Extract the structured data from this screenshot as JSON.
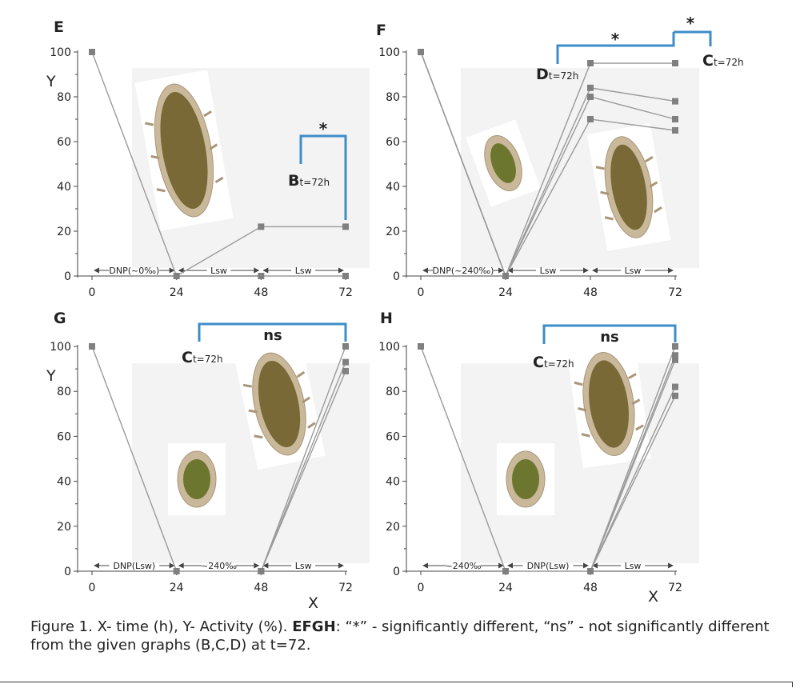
{
  "chart_data": [
    {
      "type": "line",
      "panel_label": "E",
      "ylabel": "Y",
      "xlabel": "",
      "x_ticks": [
        "0",
        "24",
        "48",
        "72"
      ],
      "y_ticks": [
        "0",
        "20",
        "40",
        "60",
        "80",
        "100"
      ],
      "xlim": [
        0,
        72
      ],
      "ylim": [
        0,
        100
      ],
      "phases": [
        "DNP(~0‰)",
        "Lsw",
        "Lsw"
      ],
      "series": [
        {
          "x": [
            0,
            24,
            48,
            72
          ],
          "y": [
            100,
            0,
            22,
            22
          ]
        },
        {
          "x": [
            48,
            72
          ],
          "y": [
            0,
            0
          ]
        }
      ],
      "comparison": {
        "label": "B",
        "subscript": "t=72h",
        "significance": "*"
      }
    },
    {
      "type": "line",
      "panel_label": "F",
      "ylabel": "",
      "xlabel": "",
      "x_ticks": [
        "0",
        "24",
        "48",
        "72"
      ],
      "y_ticks": [
        "0",
        "20",
        "40",
        "60",
        "80",
        "100"
      ],
      "xlim": [
        0,
        72
      ],
      "ylim": [
        0,
        100
      ],
      "phases": [
        "DNP(~240‰)",
        "Lsw",
        "Lsw"
      ],
      "series": [
        {
          "x": [
            0,
            24,
            48,
            72
          ],
          "y": [
            100,
            0,
            95,
            95
          ]
        },
        {
          "x": [
            0,
            24,
            48,
            72
          ],
          "y": [
            100,
            0,
            84,
            78
          ]
        },
        {
          "x": [
            0,
            24,
            48,
            72
          ],
          "y": [
            100,
            0,
            80,
            70
          ]
        },
        {
          "x": [
            0,
            24,
            48,
            72
          ],
          "y": [
            100,
            0,
            70,
            65
          ]
        }
      ],
      "comparisons": [
        {
          "label": "D",
          "subscript": "t=72h",
          "significance": "*"
        },
        {
          "label": "C",
          "subscript": "t=72h",
          "significance": "*"
        }
      ]
    },
    {
      "type": "line",
      "panel_label": "G",
      "ylabel": "Y",
      "xlabel": "X",
      "x_ticks": [
        "0",
        "24",
        "48",
        "72"
      ],
      "y_ticks": [
        "0",
        "20",
        "40",
        "60",
        "80",
        "100"
      ],
      "xlim": [
        0,
        72
      ],
      "ylim": [
        0,
        100
      ],
      "phases": [
        "DNP(Lsw)",
        "~240‰",
        "Lsw"
      ],
      "series": [
        {
          "x": [
            0,
            24,
            48,
            72
          ],
          "y": [
            100,
            0,
            0,
            100
          ]
        },
        {
          "x": [
            48,
            72
          ],
          "y": [
            0,
            93
          ]
        },
        {
          "x": [
            48,
            72
          ],
          "y": [
            0,
            89
          ]
        }
      ],
      "comparison": {
        "label": "C",
        "subscript": "t=72h",
        "significance": "ns"
      }
    },
    {
      "type": "line",
      "panel_label": "H",
      "ylabel": "",
      "xlabel": "X",
      "x_ticks": [
        "0",
        "24",
        "48",
        "72"
      ],
      "y_ticks": [
        "0",
        "20",
        "40",
        "60",
        "80",
        "100"
      ],
      "xlim": [
        0,
        72
      ],
      "ylim": [
        0,
        100
      ],
      "phases": [
        "~240‰",
        "DNP(Lsw)",
        "Lsw"
      ],
      "series": [
        {
          "x": [
            0,
            24,
            48,
            72
          ],
          "y": [
            100,
            0,
            0,
            100
          ]
        },
        {
          "x": [
            48,
            72
          ],
          "y": [
            0,
            96
          ]
        },
        {
          "x": [
            48,
            72
          ],
          "y": [
            0,
            94
          ]
        },
        {
          "x": [
            48,
            72
          ],
          "y": [
            0,
            82
          ]
        },
        {
          "x": [
            48,
            72
          ],
          "y": [
            0,
            78
          ]
        }
      ],
      "comparison": {
        "label": "C",
        "subscript": "t=72h",
        "significance": "ns"
      }
    }
  ],
  "colors": {
    "series_line": "#9a9a9a",
    "marker": "#808080",
    "bracket": "#3c8dc8",
    "axis": "#444444",
    "text": "#222222",
    "photo_bg": "#f3f3f3"
  },
  "caption": {
    "prefix": "Figure 1.  X- time (h), Y- Activity (%).  ",
    "bold": "EFGH",
    "rest": ": “*” - significantly different, “ns” - not significantly different from the given graphs (B,C,D) at t=72."
  }
}
